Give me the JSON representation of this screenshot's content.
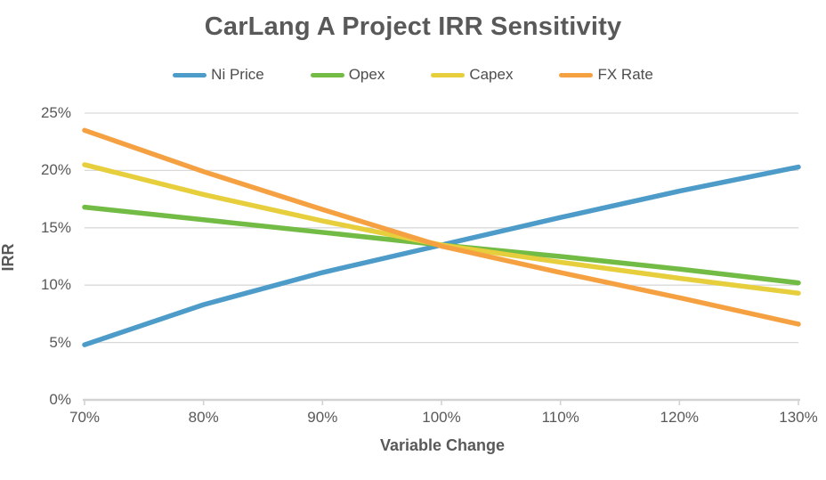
{
  "chart_data": {
    "type": "line",
    "title": "CarLang A Project IRR Sensitivity",
    "xlabel": "Variable Change",
    "ylabel": "IRR",
    "x": [
      70,
      80,
      90,
      100,
      110,
      120,
      130
    ],
    "x_tick_labels": [
      "70%",
      "80%",
      "90%",
      "100%",
      "110%",
      "120%",
      "130%"
    ],
    "xlim": [
      70,
      130
    ],
    "ylim": [
      0,
      25
    ],
    "y_ticks": [
      0,
      5,
      10,
      15,
      20,
      25
    ],
    "y_tick_labels": [
      "0%",
      "5%",
      "10%",
      "15%",
      "20%",
      "25%"
    ],
    "grid": "horizontal",
    "legend_position": "top",
    "series": [
      {
        "name": "Ni Price",
        "color": "#4D9BC8",
        "values": [
          4.8,
          8.3,
          11.1,
          13.5,
          15.9,
          18.2,
          20.3
        ]
      },
      {
        "name": "Opex",
        "color": "#72BB44",
        "values": [
          16.8,
          15.7,
          14.6,
          13.5,
          12.5,
          11.4,
          10.2
        ]
      },
      {
        "name": "Capex",
        "color": "#E7CE3C",
        "values": [
          20.5,
          17.9,
          15.6,
          13.5,
          12.0,
          10.6,
          9.3
        ]
      },
      {
        "name": "FX Rate",
        "color": "#F5A142",
        "values": [
          23.5,
          19.9,
          16.6,
          13.4,
          11.1,
          8.9,
          6.6
        ]
      }
    ]
  },
  "colors": {
    "title_text": "#595959",
    "tick_text": "#595959",
    "gridline": "#D9D9D9",
    "axis_line": "#D2D2D2"
  }
}
